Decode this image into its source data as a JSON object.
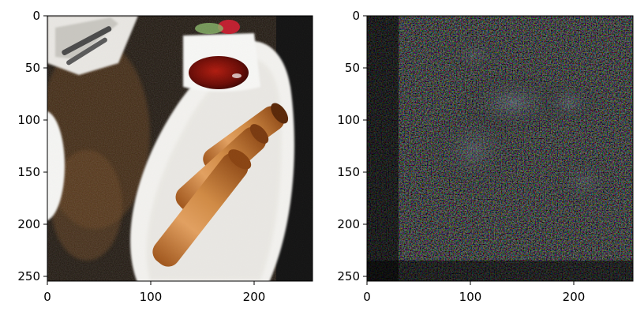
{
  "figure": {
    "panels": [
      {
        "name": "left-image",
        "content": "spring rolls on white plate with dipping sauce",
        "x_ticks": [
          "0",
          "100",
          "200"
        ],
        "y_ticks": [
          "0",
          "50",
          "100",
          "150",
          "200",
          "250"
        ]
      },
      {
        "name": "right-image",
        "content": "dark saliency/noise map",
        "x_ticks": [
          "0",
          "100",
          "200"
        ],
        "y_ticks": [
          "0",
          "50",
          "100",
          "150",
          "200",
          "250"
        ]
      }
    ]
  }
}
